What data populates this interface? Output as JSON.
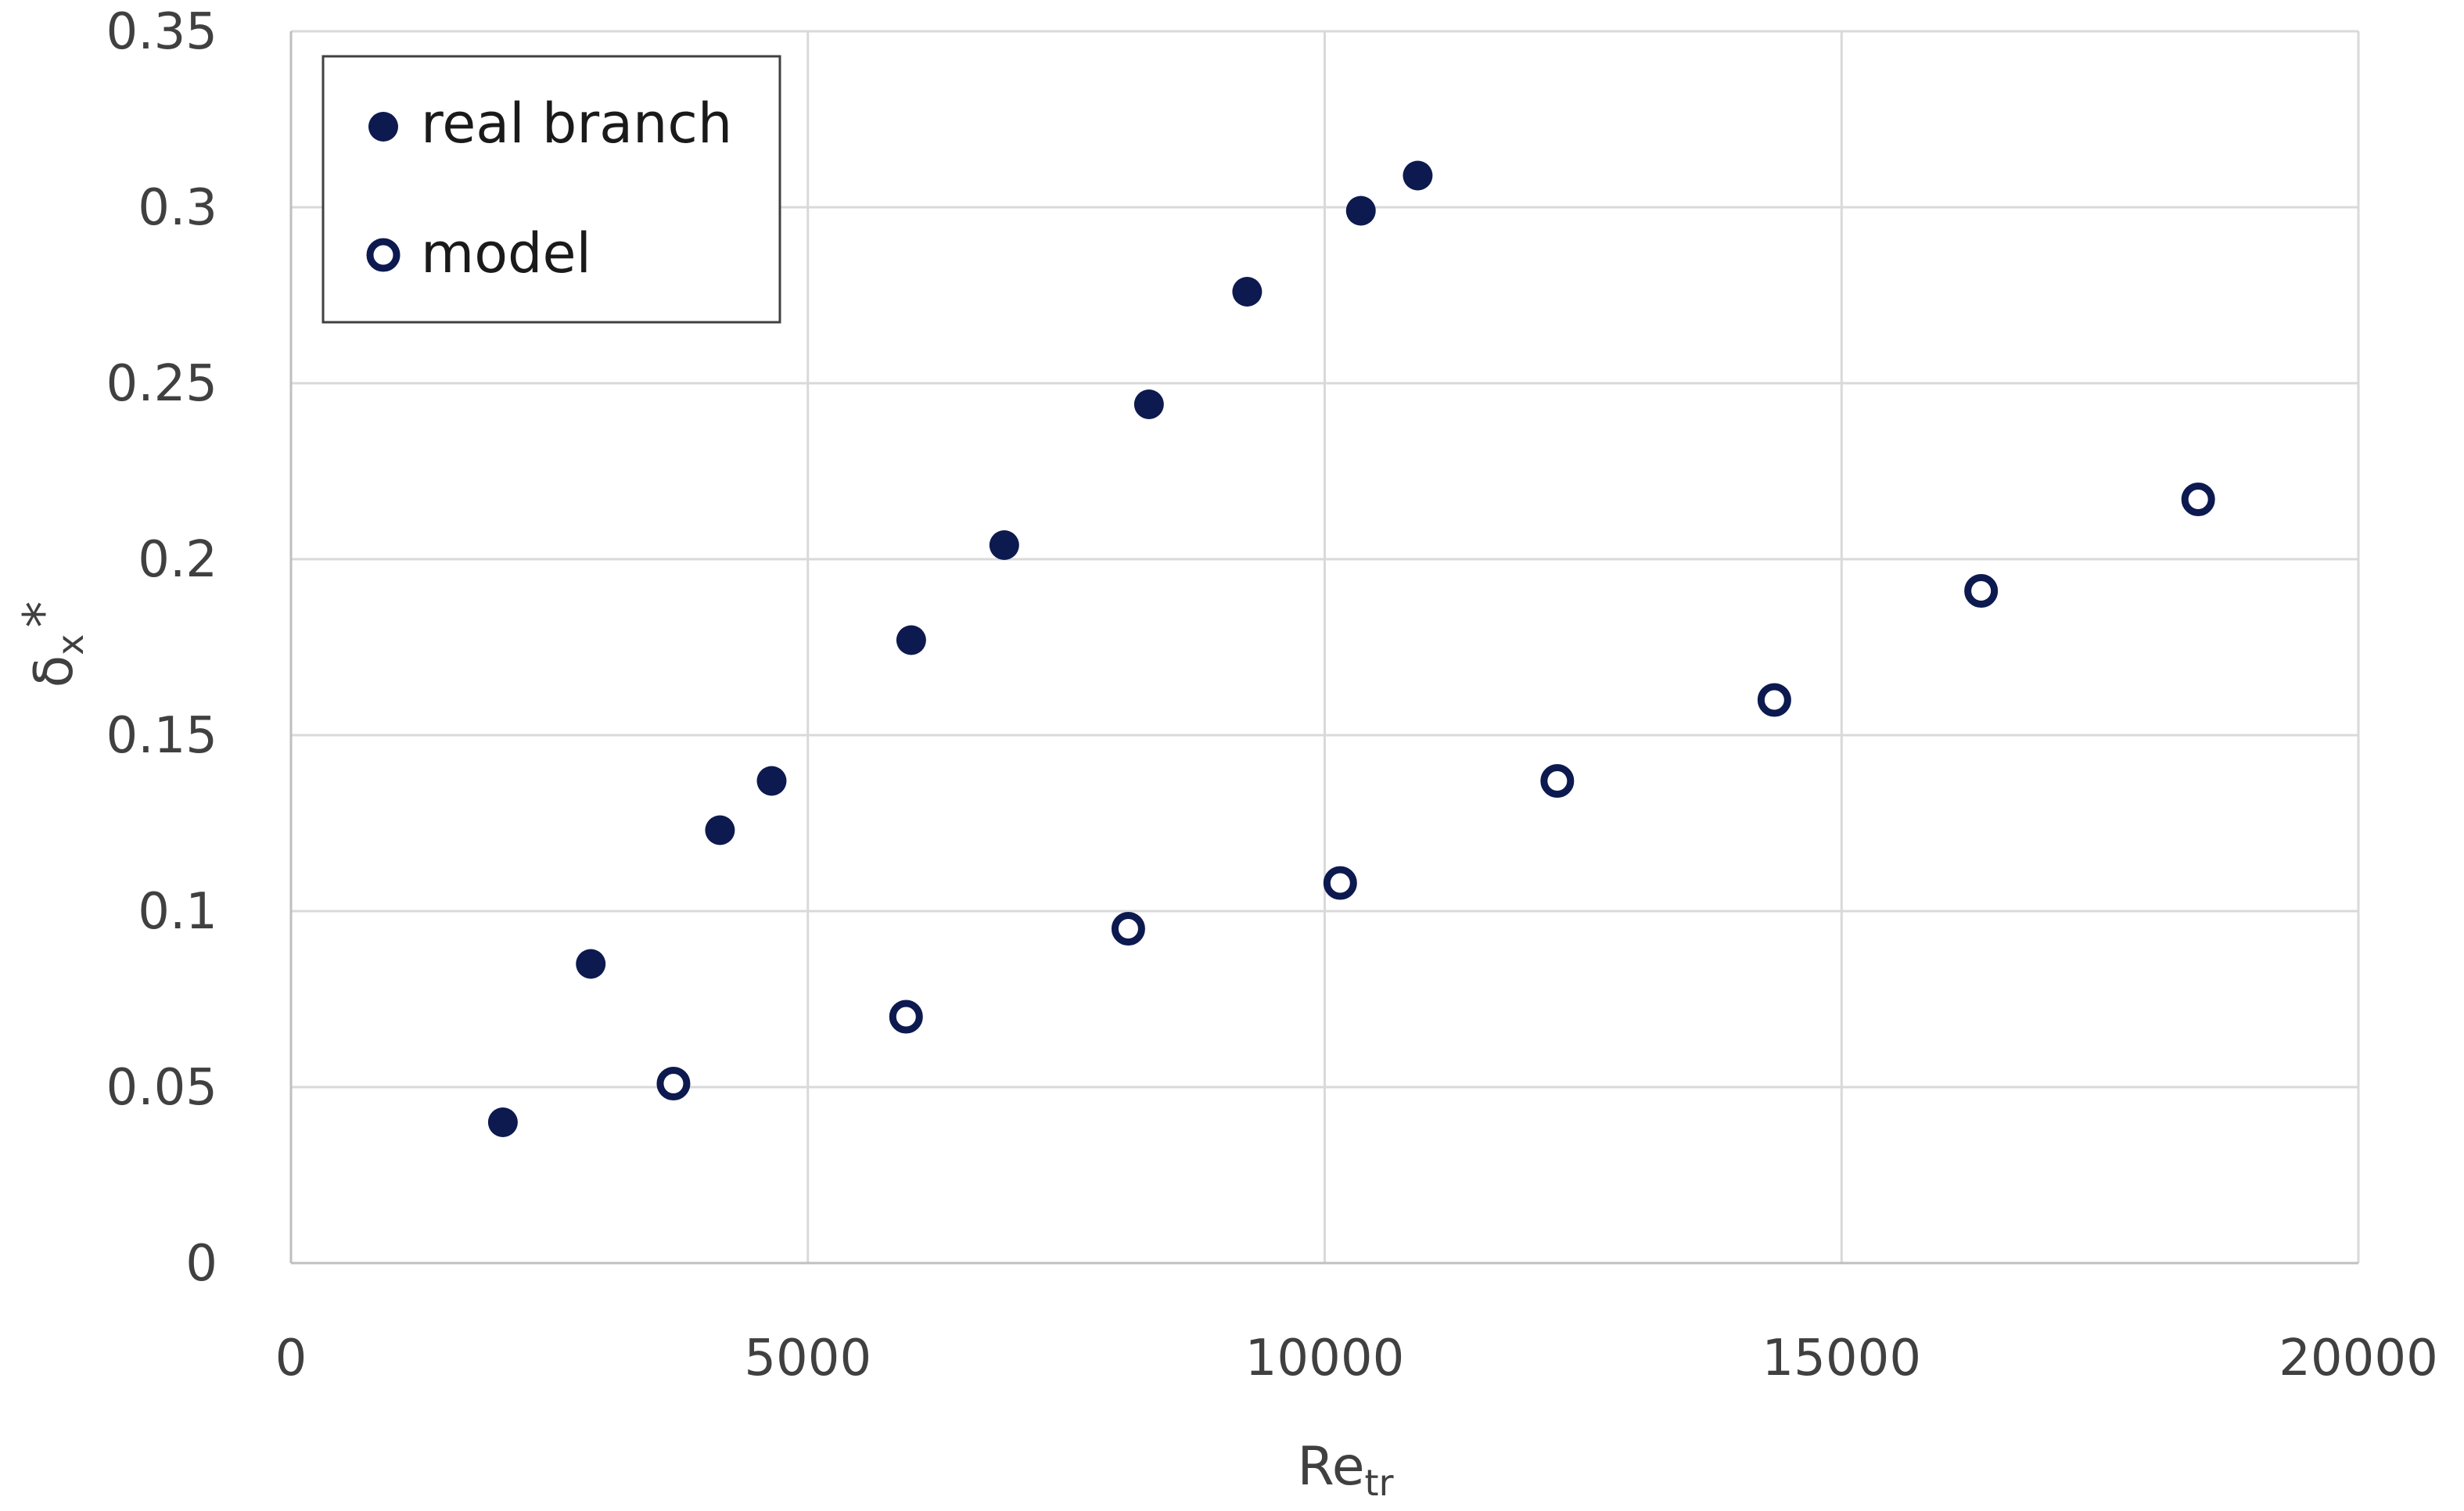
{
  "chart_data": {
    "type": "scatter",
    "xlabel": {
      "main": "Re",
      "sub": "tr"
    },
    "ylabel": {
      "main": "δ",
      "sub": "x",
      "sup": "*"
    },
    "xlim": [
      0,
      20000
    ],
    "ylim": [
      0,
      0.35
    ],
    "x_ticks": [
      "0",
      "5000",
      "10000",
      "15000",
      "20000"
    ],
    "y_ticks": [
      "0",
      "0.05",
      "0.1",
      "0.15",
      "0.2",
      "0.25",
      "0.3",
      "0.35"
    ],
    "grid": true,
    "legend_position": "top-left",
    "colors": {
      "marker": "#0d1a4f",
      "grid": "#d9d9d9",
      "axis": "#bfbfbf",
      "text": "#404040"
    },
    "series": [
      {
        "name": "real branch",
        "marker": "filled-circle",
        "points": [
          {
            "x": 2050,
            "y": 0.04
          },
          {
            "x": 2900,
            "y": 0.085
          },
          {
            "x": 4150,
            "y": 0.123
          },
          {
            "x": 4650,
            "y": 0.137
          },
          {
            "x": 6000,
            "y": 0.177
          },
          {
            "x": 6900,
            "y": 0.204
          },
          {
            "x": 8300,
            "y": 0.244
          },
          {
            "x": 9250,
            "y": 0.276
          },
          {
            "x": 10350,
            "y": 0.299
          },
          {
            "x": 10900,
            "y": 0.309
          }
        ]
      },
      {
        "name": "model",
        "marker": "hollow-circle",
        "points": [
          {
            "x": 3700,
            "y": 0.051
          },
          {
            "x": 5950,
            "y": 0.07
          },
          {
            "x": 8100,
            "y": 0.095
          },
          {
            "x": 10150,
            "y": 0.108
          },
          {
            "x": 12250,
            "y": 0.137
          },
          {
            "x": 14350,
            "y": 0.16
          },
          {
            "x": 16350,
            "y": 0.191
          },
          {
            "x": 18450,
            "y": 0.217
          }
        ]
      }
    ]
  }
}
